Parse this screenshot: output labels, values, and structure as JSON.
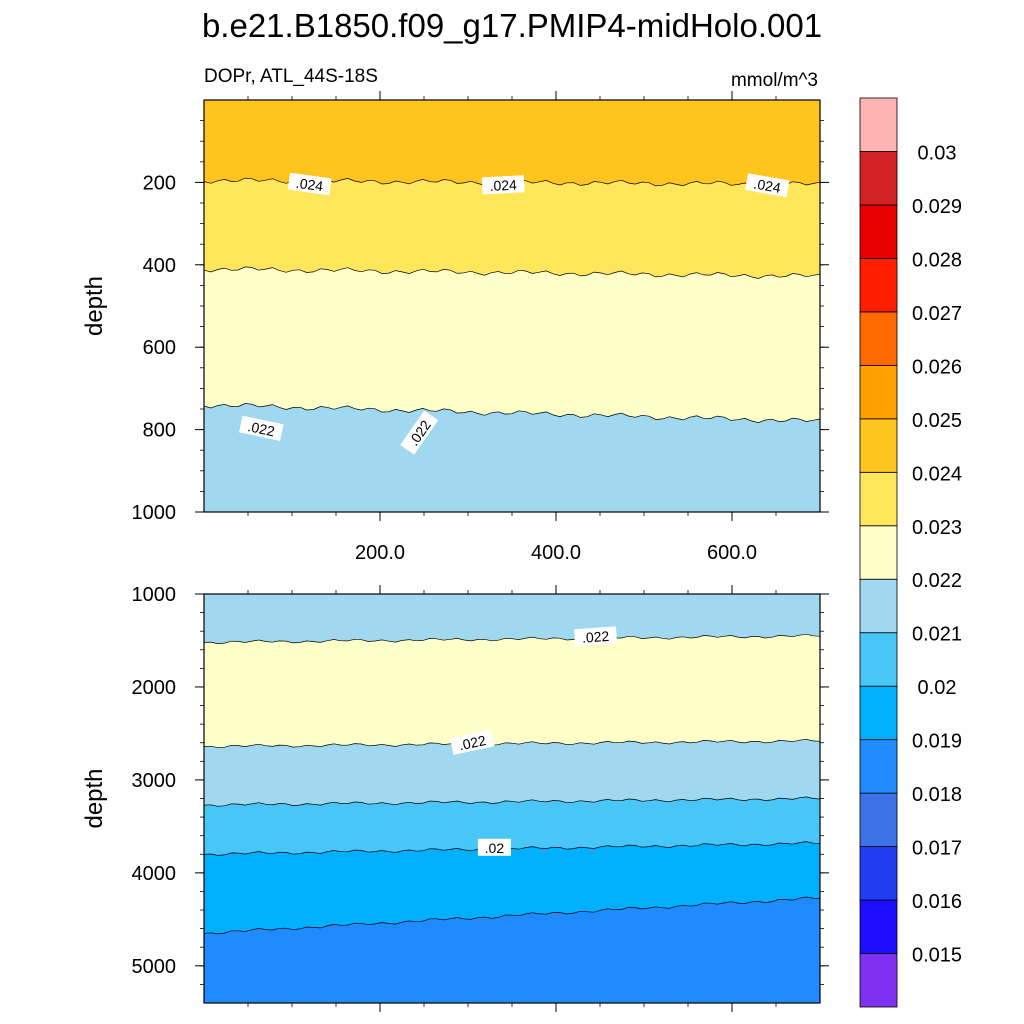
{
  "chart_data": {
    "type": "contour",
    "title": "b.e21.B1850.f09_g17.PMIP4-midHolo.001",
    "left_label": "DOPr, ATL_44S-18S",
    "units": "mmol/m^3",
    "x_range": [
      0,
      700
    ],
    "x_ticks": [
      {
        "value": 200,
        "label": "200.0"
      },
      {
        "value": 400,
        "label": "400.0"
      },
      {
        "value": 600,
        "label": "600.0"
      }
    ],
    "colorbar": {
      "colors": [
        "#8030f0",
        "#1e0cff",
        "#1e3cf0",
        "#3c72e6",
        "#1e8cff",
        "#00b0ff",
        "#48c6f8",
        "#a0d8f0",
        "#ffffc8",
        "#ffe65a",
        "#ffc41e",
        "#ffa000",
        "#ff6a00",
        "#ff1e00",
        "#e60000",
        "#d22222",
        "#ffb4b4"
      ],
      "labels": [
        "0.015",
        "0.016",
        "0.017",
        "0.018",
        "0.019",
        "0.02",
        "0.021",
        "0.022",
        "0.023",
        "0.024",
        "0.025",
        "0.026",
        "0.027",
        "0.028",
        "0.029",
        "0.03"
      ]
    },
    "panels": [
      {
        "name": "upper",
        "ylabel": "depth",
        "y_range": [
          0,
          1000
        ],
        "y_ticks": [
          {
            "value": 200,
            "label": "200"
          },
          {
            "value": 400,
            "label": "400"
          },
          {
            "value": 600,
            "label": "600"
          },
          {
            "value": 800,
            "label": "800"
          },
          {
            "value": 1000,
            "label": "1000"
          }
        ],
        "bands": [
          {
            "level": "0.024-0.025",
            "color": "#ffc41e",
            "top": [
              0,
              0
            ],
            "bottom": [
              195,
              205
            ]
          },
          {
            "level": "0.023-0.024",
            "color": "#ffe65a",
            "top": [
              195,
              205
            ],
            "bottom": [
              410,
              428
            ]
          },
          {
            "level": "0.022-0.023",
            "color": "#ffffc8",
            "top": [
              410,
              428
            ],
            "bottom": [
              740,
              780
            ]
          },
          {
            "level": "0.021-0.022",
            "color": "#a0d8f0",
            "top": [
              740,
              780
            ],
            "bottom": [
              1000,
              1000
            ]
          }
        ],
        "contour_labels": [
          {
            "text": ".024",
            "x": 120,
            "y": 205,
            "angle": 8
          },
          {
            "text": ".024",
            "x": 340,
            "y": 207,
            "angle": -3
          },
          {
            "text": ".024",
            "x": 640,
            "y": 208,
            "angle": 10
          },
          {
            "text": ".022",
            "x": 65,
            "y": 798,
            "angle": 12
          },
          {
            "text": ".022",
            "x": 245,
            "y": 808,
            "angle": -55
          }
        ]
      },
      {
        "name": "lower",
        "ylabel": "depth",
        "y_range": [
          1000,
          5400
        ],
        "y_ticks": [
          {
            "value": 1000,
            "label": "1000"
          },
          {
            "value": 2000,
            "label": "2000"
          },
          {
            "value": 3000,
            "label": "3000"
          },
          {
            "value": 4000,
            "label": "4000"
          },
          {
            "value": 5000,
            "label": "5000"
          }
        ],
        "bands": [
          {
            "level": "0.021-0.022",
            "color": "#a0d8f0",
            "top": [
              1000,
              1000
            ],
            "bottom": [
              1520,
              1450
            ]
          },
          {
            "level": "0.022-0.023",
            "color": "#ffffc8",
            "top": [
              1520,
              1450
            ],
            "bottom": [
              2640,
              2580
            ]
          },
          {
            "level": "0.021-0.022",
            "color": "#a0d8f0",
            "top": [
              2640,
              2580
            ],
            "bottom": [
              3270,
              3200
            ]
          },
          {
            "level": "0.020-0.021",
            "color": "#48c6f8",
            "top": [
              3270,
              3200
            ],
            "bottom": [
              3800,
              3680
            ]
          },
          {
            "level": "0.019-0.020",
            "color": "#00b0ff",
            "top": [
              3800,
              3680
            ],
            "bottom": [
              4650,
              4270
            ]
          },
          {
            "level": "0.018-0.019",
            "color": "#1e8cff",
            "top": [
              4650,
              4270
            ],
            "bottom": [
              5400,
              5400
            ]
          }
        ],
        "contour_labels": [
          {
            "text": ".022",
            "x": 445,
            "y": 1460,
            "angle": -4
          },
          {
            "text": ".022",
            "x": 305,
            "y": 2600,
            "angle": -12
          },
          {
            "text": ".02",
            "x": 330,
            "y": 3730,
            "angle": 0
          }
        ]
      }
    ]
  }
}
